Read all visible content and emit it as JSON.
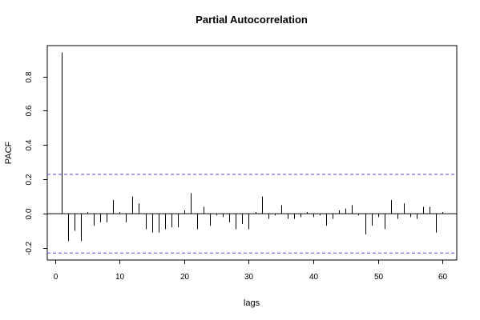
{
  "chart_data": {
    "type": "bar",
    "title": "Partial Autocorrelation",
    "xlabel": "lags",
    "ylabel": "PACF",
    "xlim": [
      -1.2,
      62.2
    ],
    "ylim": [
      -0.27,
      0.98
    ],
    "x_ticks": [
      0,
      10,
      20,
      30,
      40,
      50,
      60
    ],
    "y_ticks": [
      -0.2,
      0.0,
      0.2,
      0.4,
      0.6,
      0.8
    ],
    "y_tick_labels": [
      "-0.2",
      "0.0",
      "0.2",
      "0.4",
      "0.6",
      "0.8"
    ],
    "confidence_bounds": [
      0.229,
      -0.229
    ],
    "colors": {
      "bars": "#000000",
      "zero_line": "#000000",
      "bounds": "#4a4ae0",
      "frame": "#000000"
    },
    "grid": false,
    "lags": [
      1,
      2,
      3,
      4,
      5,
      6,
      7,
      8,
      9,
      10,
      11,
      12,
      13,
      14,
      15,
      16,
      17,
      18,
      19,
      20,
      21,
      22,
      23,
      24,
      25,
      26,
      27,
      28,
      29,
      30,
      31,
      32,
      33,
      34,
      35,
      36,
      37,
      38,
      39,
      40,
      41,
      42,
      43,
      44,
      45,
      46,
      47,
      48,
      49,
      50,
      51,
      52,
      53,
      54,
      55,
      56,
      57,
      58,
      59,
      60
    ],
    "values": [
      0.94,
      -0.16,
      -0.1,
      -0.16,
      0.01,
      -0.07,
      -0.05,
      -0.05,
      0.08,
      0.01,
      -0.05,
      0.1,
      0.06,
      -0.09,
      -0.11,
      -0.11,
      -0.09,
      -0.08,
      -0.08,
      0.02,
      0.12,
      -0.09,
      0.04,
      -0.07,
      -0.01,
      -0.02,
      -0.05,
      -0.09,
      -0.06,
      -0.09,
      0.01,
      0.1,
      -0.03,
      -0.01,
      0.05,
      -0.03,
      -0.03,
      -0.02,
      0.01,
      -0.02,
      -0.01,
      -0.07,
      -0.03,
      0.02,
      0.03,
      0.05,
      -0.01,
      -0.12,
      -0.07,
      -0.02,
      -0.09,
      0.08,
      -0.03,
      0.06,
      -0.02,
      -0.03,
      0.04,
      0.04,
      -0.11,
      0.01
    ]
  }
}
